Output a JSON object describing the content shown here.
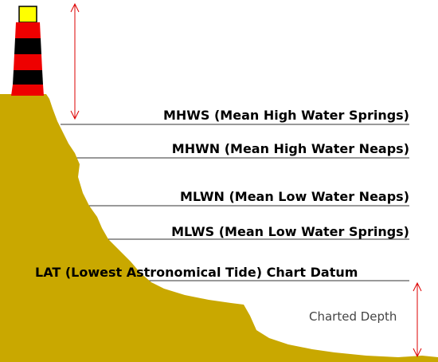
{
  "labels": {
    "mhws": "MHWS (Mean High Water Springs)",
    "mhwn": "MHWN (Mean High Water Neaps)",
    "mlwn": "MLWN (Mean Low Water Neaps)",
    "mlws": "MLWS (Mean Low Water Springs)",
    "lat": "LAT (Lowest Astronomical Tide) Chart Datum",
    "charted_depth": "Charted Depth"
  },
  "colors": {
    "land": "#c9a800",
    "lighthouse_red": "#ee0000",
    "lighthouse_black": "#000000",
    "lantern": "#ffff00",
    "arrow": "#dd0000",
    "tide_line": "#333333"
  },
  "icons": {
    "lighthouse": "lighthouse-icon"
  }
}
